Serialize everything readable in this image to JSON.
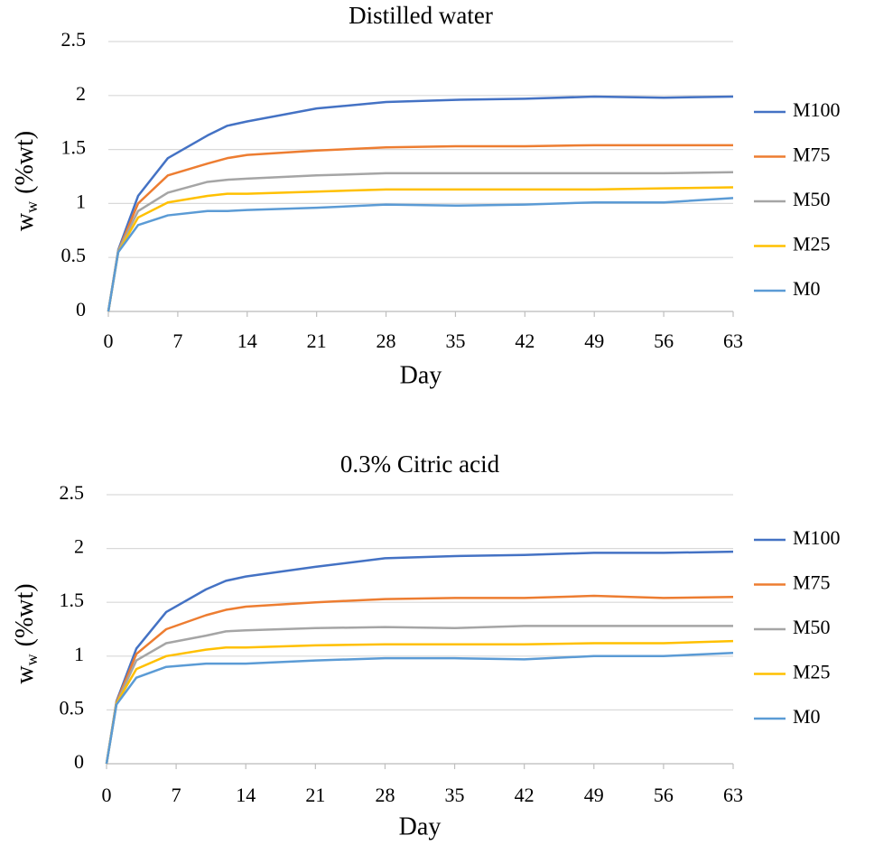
{
  "chart_data": [
    {
      "type": "line",
      "title": "Distilled water",
      "xlabel": "Day",
      "ylabel": {
        "main": "w",
        "sub": "w",
        "rest": "(%wt)"
      },
      "x": [
        0,
        1,
        3,
        6,
        10,
        12,
        14,
        21,
        28,
        35,
        42,
        49,
        56,
        63
      ],
      "xlim": [
        0,
        63
      ],
      "xticks": [
        0,
        7,
        14,
        21,
        28,
        35,
        42,
        49,
        56,
        63
      ],
      "ylim": [
        0,
        2.5
      ],
      "yticks": [
        0,
        0.5,
        1,
        1.5,
        2,
        2.5
      ],
      "grid": true,
      "legend": "right",
      "series": [
        {
          "name": "M100",
          "color": "#4472c4",
          "values": [
            0,
            0.57,
            1.07,
            1.42,
            1.63,
            1.72,
            1.76,
            1.88,
            1.94,
            1.96,
            1.97,
            1.99,
            1.98,
            1.99
          ]
        },
        {
          "name": "M75",
          "color": "#ed7d31",
          "values": [
            0,
            0.56,
            1.0,
            1.26,
            1.37,
            1.42,
            1.45,
            1.49,
            1.52,
            1.53,
            1.53,
            1.54,
            1.54,
            1.54
          ]
        },
        {
          "name": "M50",
          "color": "#a5a5a5",
          "values": [
            0,
            0.56,
            0.93,
            1.1,
            1.2,
            1.22,
            1.23,
            1.26,
            1.28,
            1.28,
            1.28,
            1.28,
            1.28,
            1.29
          ]
        },
        {
          "name": "M25",
          "color": "#ffc000",
          "values": [
            0,
            0.55,
            0.87,
            1.01,
            1.07,
            1.09,
            1.09,
            1.11,
            1.13,
            1.13,
            1.13,
            1.13,
            1.14,
            1.15
          ]
        },
        {
          "name": "M0",
          "color": "#5b9bd5",
          "values": [
            0,
            0.55,
            0.8,
            0.89,
            0.93,
            0.93,
            0.94,
            0.96,
            0.99,
            0.98,
            0.99,
            1.01,
            1.01,
            1.05
          ]
        }
      ]
    },
    {
      "type": "line",
      "title": "0.3% Citric acid",
      "xlabel": "Day",
      "ylabel": {
        "main": "w",
        "sub": "w",
        "rest": "(%wt)"
      },
      "x": [
        0,
        1,
        3,
        6,
        10,
        12,
        14,
        21,
        28,
        35,
        42,
        49,
        56,
        63
      ],
      "xlim": [
        0,
        63
      ],
      "xticks": [
        0,
        7,
        14,
        21,
        28,
        35,
        42,
        49,
        56,
        63
      ],
      "ylim": [
        0,
        2.5
      ],
      "yticks": [
        0,
        0.5,
        1,
        1.5,
        2,
        2.5
      ],
      "grid": true,
      "legend": "right",
      "series": [
        {
          "name": "M100",
          "color": "#4472c4",
          "values": [
            0,
            0.58,
            1.07,
            1.41,
            1.62,
            1.7,
            1.74,
            1.83,
            1.91,
            1.93,
            1.94,
            1.96,
            1.96,
            1.97
          ]
        },
        {
          "name": "M75",
          "color": "#ed7d31",
          "values": [
            0,
            0.57,
            1.02,
            1.25,
            1.38,
            1.43,
            1.46,
            1.5,
            1.53,
            1.54,
            1.54,
            1.56,
            1.54,
            1.55
          ]
        },
        {
          "name": "M50",
          "color": "#a5a5a5",
          "values": [
            0,
            0.56,
            0.96,
            1.12,
            1.19,
            1.23,
            1.24,
            1.26,
            1.27,
            1.26,
            1.28,
            1.28,
            1.28,
            1.28
          ]
        },
        {
          "name": "M25",
          "color": "#ffc000",
          "values": [
            0,
            0.56,
            0.88,
            1.0,
            1.06,
            1.08,
            1.08,
            1.1,
            1.11,
            1.11,
            1.11,
            1.12,
            1.12,
            1.14
          ]
        },
        {
          "name": "M0",
          "color": "#5b9bd5",
          "values": [
            0,
            0.55,
            0.8,
            0.9,
            0.93,
            0.93,
            0.93,
            0.96,
            0.98,
            0.98,
            0.97,
            1.0,
            1.0,
            1.03
          ]
        }
      ]
    }
  ]
}
